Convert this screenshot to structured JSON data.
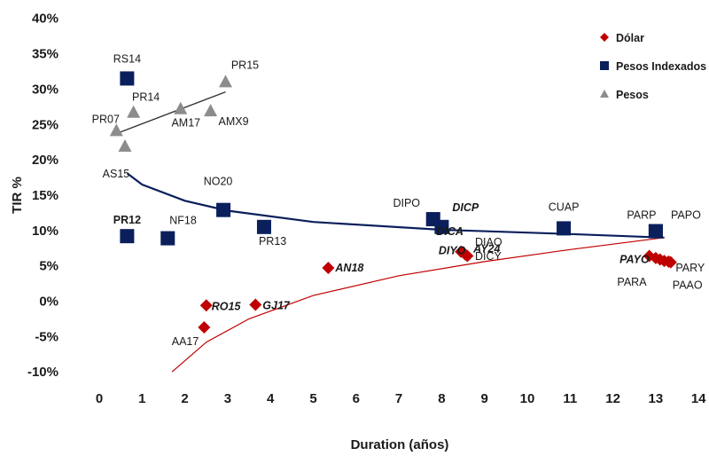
{
  "chart_data": {
    "type": "scatter",
    "title": "",
    "xlabel": "Duration (años)",
    "ylabel": "TIR %",
    "xlim": [
      0,
      14
    ],
    "ylim": [
      -10,
      40
    ],
    "x_ticks": [
      "0",
      "1",
      "2",
      "3",
      "4",
      "5",
      "6",
      "7",
      "8",
      "9",
      "10",
      "11",
      "12",
      "13",
      "14"
    ],
    "y_ticks": [
      "-10%",
      "-5%",
      "0%",
      "5%",
      "10%",
      "15%",
      "20%",
      "25%",
      "30%",
      "35%",
      "40%"
    ],
    "grid": false,
    "legend_position": "top-right",
    "series": [
      {
        "name": "Dólar",
        "marker": "diamond",
        "color": "#c00000",
        "points": [
          {
            "label": "AA17",
            "x": 2.45,
            "y": -3.7
          },
          {
            "label": "RO15",
            "x": 2.5,
            "y": -0.6
          },
          {
            "label": "GJ17",
            "x": 3.65,
            "y": -0.5
          },
          {
            "label": "AN18",
            "x": 5.35,
            "y": 4.7
          },
          {
            "label": "AY24",
            "x": 8.45,
            "y": 7.0
          },
          {
            "label": "DICA",
            "x": 8.55,
            "y": 6.6
          },
          {
            "label": "DIYO",
            "x": 8.6,
            "y": 6.4
          },
          {
            "label": "DIAO",
            "x": 12.85,
            "y": 6.4
          },
          {
            "label": "DICY",
            "x": 13.0,
            "y": 6.1
          },
          {
            "label": "PAYO",
            "x": 13.1,
            "y": 5.9
          },
          {
            "label": "PARA",
            "x": 13.2,
            "y": 5.7
          },
          {
            "label": "PARY",
            "x": 13.3,
            "y": 5.6
          },
          {
            "label": "PAAO",
            "x": 13.35,
            "y": 5.5
          }
        ]
      },
      {
        "name": "Pesos Indexados",
        "marker": "square",
        "color": "#0a1f5c",
        "points": [
          {
            "label": "RS14",
            "x": 0.65,
            "y": 31.5
          },
          {
            "label": "PR12",
            "x": 0.65,
            "y": 9.2
          },
          {
            "label": "NF18",
            "x": 1.6,
            "y": 8.9
          },
          {
            "label": "NO20",
            "x": 2.9,
            "y": 12.9
          },
          {
            "label": "PR13",
            "x": 3.85,
            "y": 10.5
          },
          {
            "label": "DIPO",
            "x": 7.8,
            "y": 11.6
          },
          {
            "label": "DICP",
            "x": 8.0,
            "y": 10.5
          },
          {
            "label": "CUAP",
            "x": 10.85,
            "y": 10.3
          },
          {
            "label": "PARP",
            "x": 13.0,
            "y": 9.9
          },
          {
            "label": "PAPO",
            "x": 13.0,
            "y": 9.9
          }
        ]
      },
      {
        "name": "Pesos",
        "marker": "triangle",
        "color": "#8c8c8c",
        "points": [
          {
            "label": "PR07",
            "x": 0.4,
            "y": 24.1
          },
          {
            "label": "AS15",
            "x": 0.6,
            "y": 21.9
          },
          {
            "label": "PR14",
            "x": 0.8,
            "y": 26.7
          },
          {
            "label": "AM17",
            "x": 1.9,
            "y": 27.2
          },
          {
            "label": "AMX9",
            "x": 2.6,
            "y": 26.9
          },
          {
            "label": "PR15",
            "x": 2.95,
            "y": 31.0
          }
        ]
      }
    ],
    "trendlines": [
      {
        "series": "Pesos",
        "type": "linear",
        "color": "#333333",
        "x": [
          0.4,
          2.95
        ],
        "y": [
          23.7,
          29.6
        ]
      },
      {
        "series": "Pesos Indexados",
        "type": "logarithmic",
        "color": "#0a1f5c",
        "x": [
          0.65,
          1,
          2,
          3,
          5,
          8,
          11,
          13.2
        ],
        "y": [
          18.1,
          16.5,
          14.2,
          12.8,
          11.2,
          10.1,
          9.5,
          9.0
        ]
      },
      {
        "series": "Dólar",
        "type": "logarithmic",
        "color": "#c00000",
        "x": [
          1.7,
          2.5,
          3.5,
          5,
          7,
          9,
          11,
          13.2
        ],
        "y": [
          -10.0,
          -5.8,
          -2.5,
          0.8,
          3.6,
          5.6,
          7.3,
          9.0
        ]
      }
    ]
  }
}
